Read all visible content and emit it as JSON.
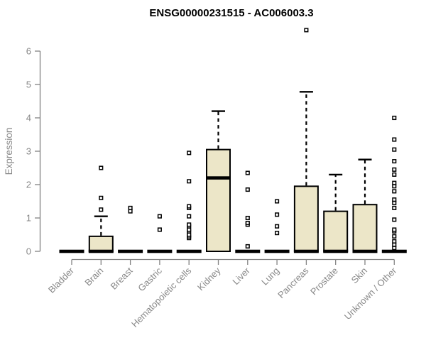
{
  "chart_data": {
    "type": "boxplot",
    "title": "ENSG00000231515 - AC006003.3",
    "xlabel": "",
    "ylabel": "Expression",
    "ylim": [
      0,
      6.8
    ],
    "yticks": [
      0,
      1,
      2,
      3,
      4,
      5,
      6
    ],
    "grid": false,
    "legend": "none",
    "categories": [
      "Bladder",
      "Brain",
      "Breast",
      "Gastric",
      "Hematopoietic cells",
      "Kidney",
      "Liver",
      "Lung",
      "Pancreas",
      "Prostate",
      "Skin",
      "Unknown / Other"
    ],
    "boxes": [
      {
        "q1": 0,
        "median": 0,
        "q3": 0,
        "whisker_low": 0,
        "whisker_high": 0,
        "outliers": []
      },
      {
        "q1": 0,
        "median": 0,
        "q3": 0.45,
        "whisker_low": 0,
        "whisker_high": 1.05,
        "outliers": [
          1.25,
          1.6,
          2.5
        ]
      },
      {
        "q1": 0,
        "median": 0,
        "q3": 0,
        "whisker_low": 0,
        "whisker_high": 0,
        "outliers": [
          1.2,
          1.3
        ]
      },
      {
        "q1": 0,
        "median": 0,
        "q3": 0,
        "whisker_low": 0,
        "whisker_high": 0,
        "outliers": [
          0.65,
          1.05
        ]
      },
      {
        "q1": 0,
        "median": 0,
        "q3": 0,
        "whisker_low": 0,
        "whisker_high": 0,
        "outliers": [
          0.4,
          0.45,
          0.5,
          0.6,
          0.65,
          0.75,
          0.8,
          1.05,
          1.3,
          1.35,
          2.1,
          2.95
        ]
      },
      {
        "q1": 0,
        "median": 2.2,
        "q3": 3.05,
        "whisker_low": 0,
        "whisker_high": 4.2,
        "outliers": []
      },
      {
        "q1": 0,
        "median": 0,
        "q3": 0,
        "whisker_low": 0,
        "whisker_high": 0,
        "outliers": [
          0.15,
          0.8,
          0.85,
          1.0,
          1.85,
          2.35
        ]
      },
      {
        "q1": 0,
        "median": 0,
        "q3": 0,
        "whisker_low": 0,
        "whisker_high": 0,
        "outliers": [
          0.55,
          0.75,
          1.1,
          1.5
        ]
      },
      {
        "q1": 0,
        "median": 0,
        "q3": 1.95,
        "whisker_low": 0,
        "whisker_high": 4.78,
        "outliers": [
          6.63
        ]
      },
      {
        "q1": 0,
        "median": 0,
        "q3": 1.2,
        "whisker_low": 0,
        "whisker_high": 2.3,
        "outliers": []
      },
      {
        "q1": 0,
        "median": 0,
        "q3": 1.4,
        "whisker_low": 0,
        "whisker_high": 2.75,
        "outliers": []
      },
      {
        "q1": 0,
        "median": 0,
        "q3": 0,
        "whisker_low": 0,
        "whisker_high": 0,
        "outliers": [
          0.1,
          0.2,
          0.3,
          0.45,
          0.6,
          0.65,
          0.95,
          1.3,
          1.45,
          1.55,
          1.8,
          1.95,
          2.05,
          2.3,
          2.45,
          2.7,
          3.05,
          3.35,
          4.0
        ]
      }
    ],
    "colors": {
      "box_fill": "#ECE6C8",
      "box_border": "#000000",
      "median": "#000000",
      "outlier_stroke": "#000000",
      "outlier_fill": "#ffffff",
      "axis": "#828282",
      "tick_text": "#888888",
      "title": "#000000",
      "background": "#ffffff"
    }
  }
}
